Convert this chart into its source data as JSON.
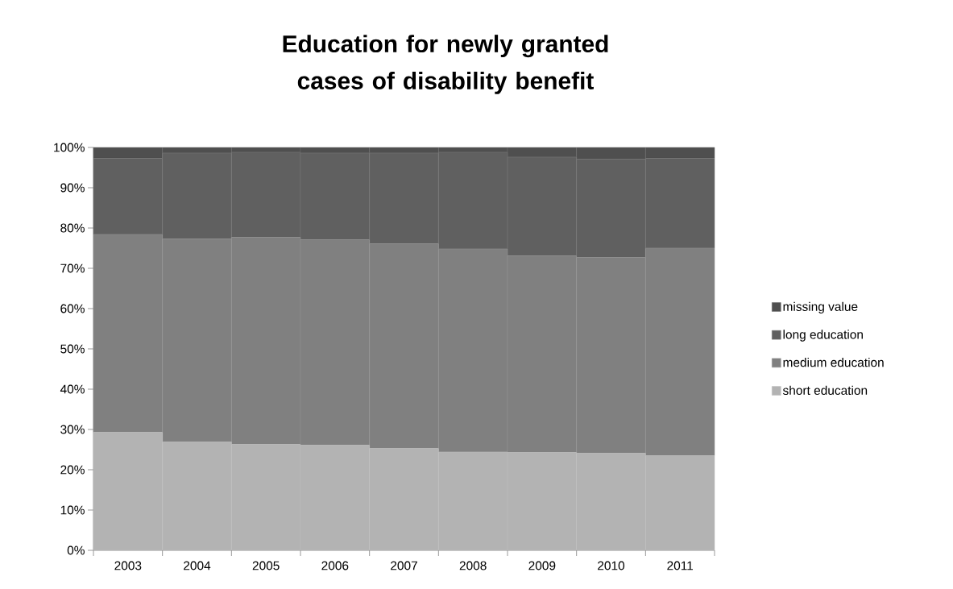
{
  "chart_data": {
    "type": "bar",
    "stacked": true,
    "title": "Education for newly granted cases of disability benefit",
    "categories": [
      "2003",
      "2004",
      "2005",
      "2006",
      "2007",
      "2008",
      "2009",
      "2010",
      "2011"
    ],
    "series": [
      {
        "name": "short education",
        "color": "#b3b3b3",
        "values": [
          29.3,
          26.9,
          26.3,
          26.1,
          25.3,
          24.4,
          24.3,
          24.1,
          23.5
        ]
      },
      {
        "name": "medium education",
        "color": "#808080",
        "values": [
          49.1,
          50.4,
          51.4,
          51.0,
          50.8,
          50.4,
          48.8,
          48.6,
          51.5
        ]
      },
      {
        "name": "long education",
        "color": "#606060",
        "values": [
          18.9,
          21.3,
          21.1,
          21.5,
          22.5,
          24.0,
          24.5,
          24.4,
          22.3
        ]
      },
      {
        "name": "missing value",
        "color": "#4f4f4f",
        "values": [
          2.7,
          1.4,
          1.2,
          1.4,
          1.4,
          1.2,
          2.4,
          2.9,
          2.7
        ]
      }
    ],
    "ylim": [
      0,
      100
    ],
    "yticks": [
      {
        "value": 0,
        "label": "0%"
      },
      {
        "value": 10,
        "label": "10%"
      },
      {
        "value": 20,
        "label": "20%"
      },
      {
        "value": 30,
        "label": "30%"
      },
      {
        "value": 40,
        "label": "40%"
      },
      {
        "value": 50,
        "label": "50%"
      },
      {
        "value": 60,
        "label": "60%"
      },
      {
        "value": 70,
        "label": "70%"
      },
      {
        "value": 80,
        "label": "80%"
      },
      {
        "value": 90,
        "label": "90%"
      },
      {
        "value": 100,
        "label": "100%"
      }
    ],
    "grid": false,
    "legend": "right"
  }
}
